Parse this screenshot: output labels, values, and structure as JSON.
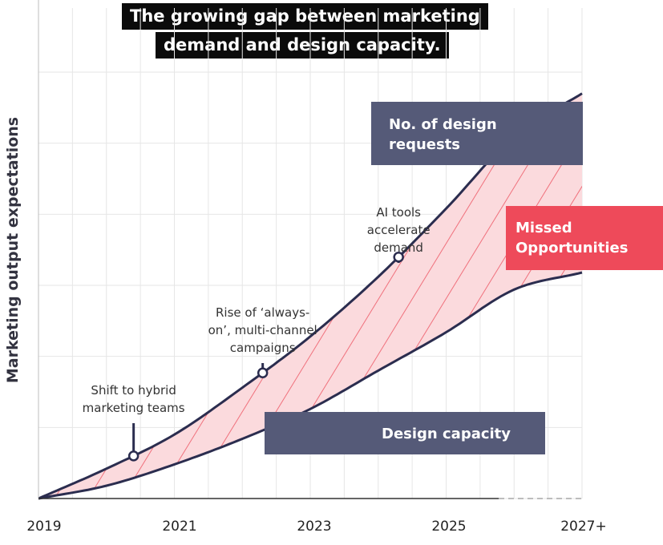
{
  "title": {
    "line1": "The growing gap between marketing",
    "line2": "demand and design capacity."
  },
  "colors": {
    "demand_line": "#2b2d4f",
    "capacity_line": "#2b2d4f",
    "gap_fill": "#fbdadd",
    "hatch": "#f0707c",
    "box_dark": "#555a78",
    "box_red": "#ee4a5a",
    "grid": "#e6e6e6"
  },
  "chart_data": {
    "type": "area",
    "title": "The growing gap between marketing demand and design capacity.",
    "ylabel": "Marketing output expectations",
    "xlabel": "",
    "x_ticks": [
      "2019",
      "2021",
      "2023",
      "2025",
      "2027+"
    ],
    "xlim": [
      2019,
      2027
    ],
    "ylim": [
      0,
      1
    ],
    "grid": true,
    "y_tick_labels": false,
    "series": [
      {
        "name": "No. of design requests",
        "x": [
          2019,
          2020,
          2021,
          2022,
          2023,
          2024,
          2025,
          2026,
          2027
        ],
        "values": [
          0,
          0.07,
          0.15,
          0.26,
          0.38,
          0.52,
          0.68,
          0.85,
          0.95
        ]
      },
      {
        "name": "Design capacity",
        "x": [
          2019,
          2020,
          2021,
          2022,
          2023,
          2024,
          2025,
          2026,
          2027
        ],
        "values": [
          0,
          0.03,
          0.08,
          0.14,
          0.21,
          0.3,
          0.39,
          0.49,
          0.53
        ]
      }
    ],
    "gap_label": "Missed Opportunities",
    "annotations": [
      {
        "text": [
          "Shift to hybrid",
          "marketing teams"
        ],
        "x": 2020.4,
        "y": 0.075
      },
      {
        "text": [
          "Rise of ‘always-",
          "on’, multi-channel",
          "campaigns"
        ],
        "x": 2022.3,
        "y": 0.23
      },
      {
        "text": [
          "AI tools",
          "accelerate",
          "demand"
        ],
        "x": 2024.3,
        "y": 0.45
      }
    ],
    "labels": {
      "demand": [
        "No. of design",
        "requests"
      ],
      "capacity": "Design capacity",
      "missed": [
        "Missed",
        "Opportunities"
      ]
    }
  }
}
